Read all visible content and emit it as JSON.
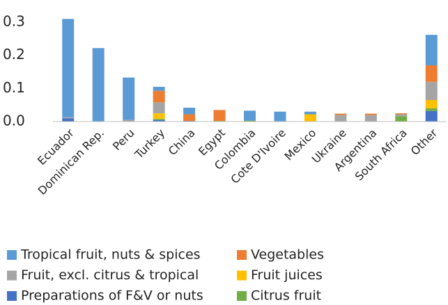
{
  "chart_data": {
    "type": "stacked_bar",
    "categories": [
      "Ecuador",
      "Dominican Rep.",
      "Peru",
      "Turkey",
      "China",
      "Egypt",
      "Colombia",
      "Cote D'Ivoire",
      "Mexico",
      "Ukraine",
      "Argentina",
      "South Africa",
      "Other"
    ],
    "series": [
      {
        "name": "Tropical fruit, nuts & spices",
        "color": "#5b9bd5",
        "values": [
          0.297,
          0.222,
          0.128,
          0.012,
          0.02,
          0,
          0.03,
          0.03,
          0.008,
          0,
          0,
          0,
          0.092
        ]
      },
      {
        "name": "Vegetables",
        "color": "#ed7d31",
        "values": [
          0,
          0,
          0,
          0.035,
          0.02,
          0.033,
          0,
          0,
          0,
          0.004,
          0.004,
          0.003,
          0.05
        ]
      },
      {
        "name": "Fruit, excl. citrus & tropical",
        "color": "#a5a5a5",
        "values": [
          0.003,
          0,
          0.005,
          0.033,
          0,
          0,
          0,
          0,
          0,
          0.02,
          0.02,
          0.006,
          0.055
        ]
      },
      {
        "name": "Fruit juices",
        "color": "#ffc000",
        "values": [
          0,
          0,
          0,
          0.017,
          0,
          0,
          0,
          0,
          0.022,
          0,
          0,
          0,
          0.025
        ]
      },
      {
        "name": "Preparations of F&V or nuts",
        "color": "#4472c4",
        "values": [
          0.01,
          0,
          0,
          0.005,
          0.002,
          0,
          0,
          0,
          0,
          0,
          0,
          0,
          0.032
        ]
      },
      {
        "name": "Citrus fruit",
        "color": "#70ad47",
        "values": [
          0,
          0,
          0,
          0.003,
          0,
          0.002,
          0.003,
          0,
          0,
          0,
          0,
          0.016,
          0.008
        ]
      }
    ],
    "ylim": [
      0,
      0.3
    ],
    "yticks": [
      {
        "value": 0,
        "label": "0.0"
      },
      0.1,
      0.2,
      0.3
    ],
    "grid": false
  }
}
